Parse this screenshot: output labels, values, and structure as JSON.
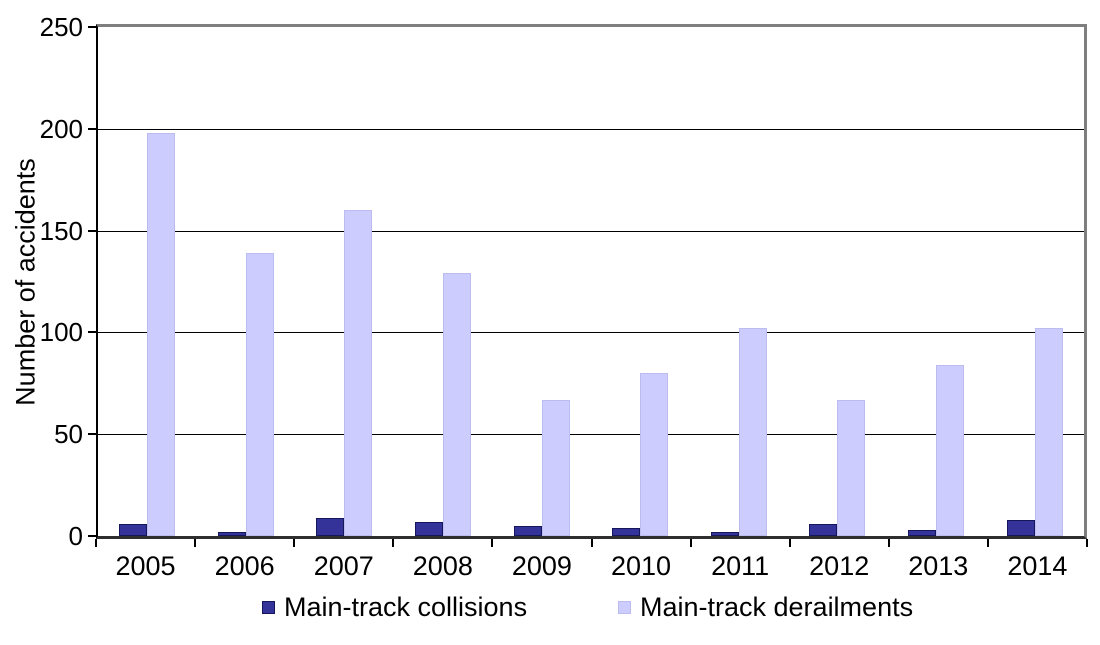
{
  "chart_data": {
    "type": "bar",
    "title": "",
    "xlabel": "",
    "ylabel": "Number of accidents",
    "ylim": [
      0,
      250
    ],
    "ytick_step": 50,
    "grid": true,
    "legend_position": "bottom",
    "categories": [
      "2005",
      "2006",
      "2007",
      "2008",
      "2009",
      "2010",
      "2011",
      "2012",
      "2013",
      "2014"
    ],
    "series": [
      {
        "name": "Main-track collisions",
        "color": "#333399",
        "border_color": "#16165c",
        "values": [
          6,
          2,
          9,
          7,
          5,
          4,
          2,
          6,
          3,
          8
        ]
      },
      {
        "name": "Main-track derailments",
        "color": "#ccccff",
        "border_color": "#bcbcf0",
        "values": [
          198,
          139,
          160,
          129,
          67,
          80,
          102,
          67,
          84,
          102
        ]
      }
    ],
    "colors": {
      "axis": "#000000",
      "frame_shadow": "#7f7f7f",
      "gridline": "#000000",
      "background": "#ffffff"
    }
  }
}
